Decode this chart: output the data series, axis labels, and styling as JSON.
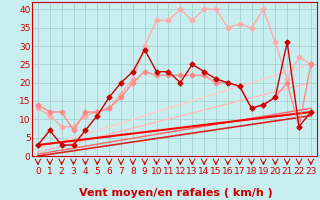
{
  "xlabel": "Vent moyen/en rafales ( km/h )",
  "xlim": [
    -0.5,
    23.5
  ],
  "ylim": [
    0,
    42
  ],
  "yticks": [
    0,
    5,
    10,
    15,
    20,
    25,
    30,
    35,
    40
  ],
  "xticks": [
    0,
    1,
    2,
    3,
    4,
    5,
    6,
    7,
    8,
    9,
    10,
    11,
    12,
    13,
    14,
    15,
    16,
    17,
    18,
    19,
    20,
    21,
    22,
    23
  ],
  "background_color": "#c8eef0",
  "grid_color": "#a0ccc8",
  "lines": [
    {
      "x": [
        0,
        1,
        2,
        3,
        4,
        5,
        6,
        7,
        8,
        9,
        10,
        11,
        12,
        13,
        14,
        15,
        16,
        17,
        18,
        19,
        20,
        21,
        22,
        23
      ],
      "y": [
        13,
        11,
        8,
        8,
        11,
        12,
        13,
        17,
        21,
        30,
        37,
        37,
        40,
        37,
        40,
        40,
        35,
        36,
        35,
        40,
        31,
        21,
        27,
        25
      ],
      "color": "#ffaaaa",
      "marker": "D",
      "markersize": 2.5,
      "linewidth": 1.0,
      "zorder": 3
    },
    {
      "x": [
        0,
        1,
        2,
        3,
        4,
        5,
        6,
        7,
        8,
        9,
        10,
        11,
        12,
        13,
        14,
        15,
        16,
        17,
        18,
        19,
        20,
        21,
        22,
        23
      ],
      "y": [
        14,
        12,
        12,
        7,
        12,
        12,
        13,
        16,
        20,
        23,
        22,
        22,
        22,
        22,
        22,
        20,
        20,
        19,
        13,
        14,
        16,
        20,
        8,
        25
      ],
      "color": "#ff8888",
      "marker": "D",
      "markersize": 2.5,
      "linewidth": 1.0,
      "zorder": 4
    },
    {
      "x": [
        0,
        1,
        2,
        3,
        4,
        5,
        6,
        7,
        8,
        9,
        10,
        11,
        12,
        13,
        14,
        15,
        16,
        17,
        18,
        19,
        20,
        21,
        22,
        23
      ],
      "y": [
        3,
        7,
        3,
        3,
        7,
        11,
        16,
        20,
        23,
        29,
        23,
        23,
        20,
        25,
        23,
        21,
        20,
        19,
        13,
        14,
        16,
        31,
        8,
        12
      ],
      "color": "#cc0000",
      "marker": "D",
      "markersize": 2.5,
      "linewidth": 1.0,
      "zorder": 5
    },
    {
      "x": [
        0,
        23
      ],
      "y": [
        2,
        25
      ],
      "color": "#ffcccc",
      "marker": null,
      "markersize": 0,
      "linewidth": 1.0,
      "zorder": 2
    },
    {
      "x": [
        0,
        23
      ],
      "y": [
        1,
        20
      ],
      "color": "#ffbbbb",
      "marker": null,
      "markersize": 0,
      "linewidth": 1.0,
      "zorder": 2
    },
    {
      "x": [
        0,
        23
      ],
      "y": [
        0.5,
        13
      ],
      "color": "#ff6666",
      "marker": null,
      "markersize": 0,
      "linewidth": 1.0,
      "zorder": 2
    },
    {
      "x": [
        0,
        23
      ],
      "y": [
        0,
        11
      ],
      "color": "#dd2222",
      "marker": null,
      "markersize": 0,
      "linewidth": 1.2,
      "zorder": 2
    },
    {
      "x": [
        0,
        23
      ],
      "y": [
        3,
        12
      ],
      "color": "#ff0000",
      "marker": null,
      "markersize": 0,
      "linewidth": 1.5,
      "zorder": 3
    }
  ],
  "arrow_color": "#cc0000",
  "xlabel_color": "#cc0000",
  "xlabel_fontsize": 8,
  "tick_color": "#cc0000",
  "tick_fontsize": 6.5
}
